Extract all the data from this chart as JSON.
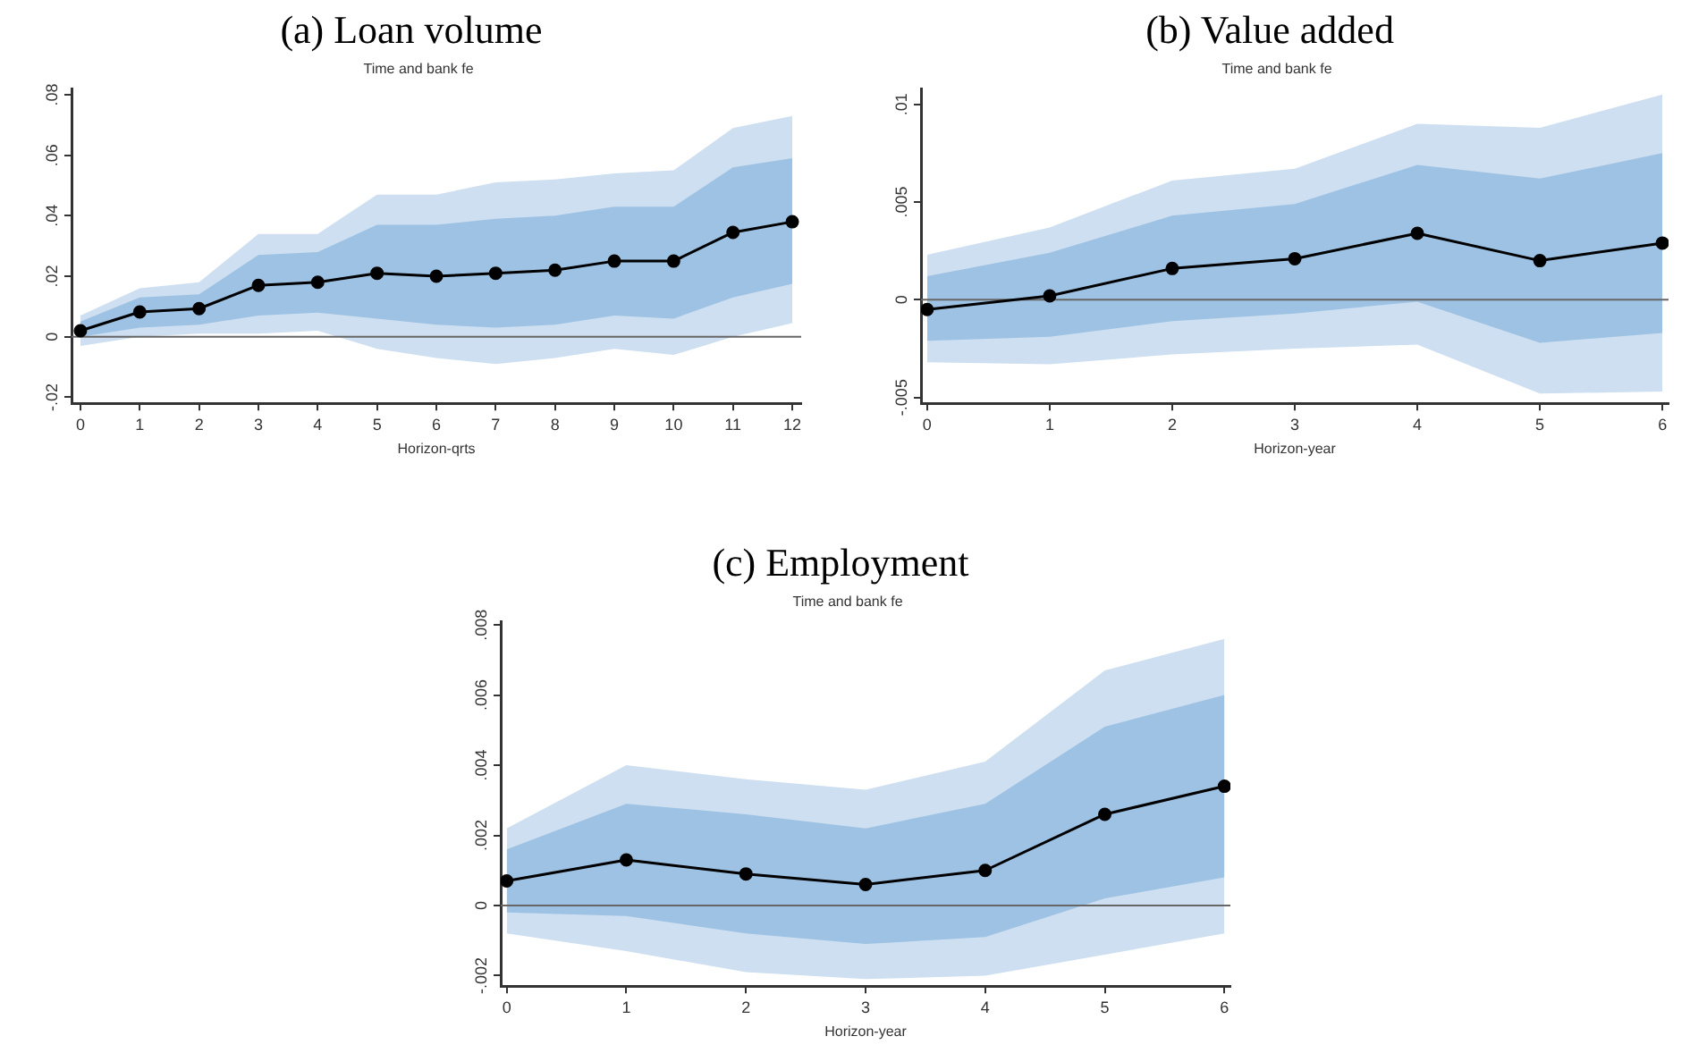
{
  "chart_data": [
    {
      "type": "line",
      "title": "(a) Loan volume",
      "subtitle": "Time and bank fe",
      "xlabel": "Horizon-qrts",
      "x": [
        0,
        1,
        2,
        3,
        4,
        5,
        6,
        7,
        8,
        9,
        10,
        11,
        12
      ],
      "xlim": [
        -0.15,
        12.15
      ],
      "xticks": [
        0,
        1,
        2,
        3,
        4,
        5,
        6,
        7,
        8,
        9,
        10,
        11,
        12
      ],
      "ylim": [
        -0.022,
        0.082
      ],
      "yticks": [
        {
          "value": -0.02,
          "label": "-.02"
        },
        {
          "value": 0,
          "label": "0"
        },
        {
          "value": 0.02,
          "label": ".02"
        },
        {
          "value": 0.04,
          "label": ".04"
        },
        {
          "value": 0.06,
          "label": ".06"
        },
        {
          "value": 0.08,
          "label": ".08"
        }
      ],
      "grid": false,
      "legend": false,
      "marker": "circle",
      "line_style": "solid",
      "ref_lines": [
        {
          "axis": "y",
          "value": 0,
          "color": "#666666"
        }
      ],
      "series": [
        {
          "color": "#cddff0",
          "values": [
            null,
            null,
            null,
            null,
            null,
            null,
            null,
            null,
            null,
            null,
            null,
            null,
            null
          ],
          "lower": [
            -0.003,
            0,
            0.001,
            0.001,
            0.002,
            -0.004,
            -0.007,
            -0.009,
            -0.007,
            -0.004,
            -0.006,
            0,
            0.0045
          ],
          "upper": [
            0.007,
            0.016,
            0.018,
            0.034,
            0.034,
            0.047,
            0.047,
            0.051,
            0.052,
            0.054,
            0.055,
            0.069,
            0.073
          ]
        },
        {
          "color": "#9dc2e3",
          "values": [
            null,
            null,
            null,
            null,
            null,
            null,
            null,
            null,
            null,
            null,
            null,
            null,
            null
          ],
          "lower": [
            0,
            0.003,
            0.004,
            0.007,
            0.008,
            0.006,
            0.004,
            0.003,
            0.004,
            0.007,
            0.006,
            0.013,
            0.0175
          ],
          "upper": [
            0.005,
            0.013,
            0.014,
            0.027,
            0.028,
            0.037,
            0.037,
            0.039,
            0.04,
            0.043,
            0.043,
            0.056,
            0.059
          ]
        },
        {
          "color": "#000000",
          "values": [
            0.002,
            0.0082,
            0.0093,
            0.017,
            0.018,
            0.021,
            0.02,
            0.021,
            0.022,
            0.025,
            0.025,
            0.0345,
            0.038
          ]
        }
      ]
    },
    {
      "type": "line",
      "title": "(b) Value added",
      "subtitle": "Time and bank fe",
      "xlabel": "Horizon-year",
      "x": [
        0,
        1,
        2,
        3,
        4,
        5,
        6
      ],
      "xlim": [
        -0.05,
        6.05
      ],
      "xticks": [
        0,
        1,
        2,
        3,
        4,
        5,
        6
      ],
      "ylim": [
        -0.0053,
        0.0108
      ],
      "yticks": [
        {
          "value": -0.005,
          "label": "-.005"
        },
        {
          "value": 0,
          "label": "0"
        },
        {
          "value": 0.005,
          "label": ".005"
        },
        {
          "value": 0.01,
          "label": ".01"
        }
      ],
      "grid": false,
      "legend": false,
      "marker": "circle",
      "line_style": "solid",
      "ref_lines": [
        {
          "axis": "y",
          "value": 0,
          "color": "#666666"
        }
      ],
      "series": [
        {
          "color": "#cddff0",
          "values": [
            null,
            null,
            null,
            null,
            null,
            null,
            null
          ],
          "lower": [
            -0.0032,
            -0.0033,
            -0.0028,
            -0.0025,
            -0.0023,
            -0.0048,
            -0.0047
          ],
          "upper": [
            0.0023,
            0.0037,
            0.0061,
            0.0067,
            0.009,
            0.0088,
            0.0105
          ]
        },
        {
          "color": "#9dc2e3",
          "values": [
            null,
            null,
            null,
            null,
            null,
            null,
            null
          ],
          "lower": [
            -0.0021,
            -0.0019,
            -0.0011,
            -0.0007,
            -0.0001,
            -0.0022,
            -0.0017
          ],
          "upper": [
            0.0012,
            0.0024,
            0.0043,
            0.0049,
            0.0069,
            0.0062,
            0.0075
          ]
        },
        {
          "color": "#000000",
          "values": [
            -0.0005,
            0.0002,
            0.0016,
            0.0021,
            0.0034,
            0.002,
            0.0029
          ]
        }
      ]
    },
    {
      "type": "line",
      "title": "(c) Employment",
      "subtitle": "Time and bank fe",
      "xlabel": "Horizon-year",
      "x": [
        0,
        1,
        2,
        3,
        4,
        5,
        6
      ],
      "xlim": [
        -0.05,
        6.05
      ],
      "xticks": [
        0,
        1,
        2,
        3,
        4,
        5,
        6
      ],
      "ylim": [
        -0.0023,
        0.0081
      ],
      "yticks": [
        {
          "value": -0.002,
          "label": "-.002"
        },
        {
          "value": 0,
          "label": "0"
        },
        {
          "value": 0.002,
          "label": ".002"
        },
        {
          "value": 0.004,
          "label": ".004"
        },
        {
          "value": 0.006,
          "label": ".006"
        },
        {
          "value": 0.008,
          "label": ".008"
        }
      ],
      "grid": false,
      "legend": false,
      "marker": "circle",
      "line_style": "solid",
      "ref_lines": [
        {
          "axis": "y",
          "value": 0,
          "color": "#666666"
        }
      ],
      "series": [
        {
          "color": "#cddff0",
          "values": [
            null,
            null,
            null,
            null,
            null,
            null,
            null
          ],
          "lower": [
            -0.0008,
            -0.0013,
            -0.0019,
            -0.0021,
            -0.002,
            -0.0014,
            -0.0008
          ],
          "upper": [
            0.0022,
            0.004,
            0.0036,
            0.0033,
            0.0041,
            0.0067,
            0.0076
          ]
        },
        {
          "color": "#9dc2e3",
          "values": [
            null,
            null,
            null,
            null,
            null,
            null,
            null
          ],
          "lower": [
            -0.0002,
            -0.0003,
            -0.0008,
            -0.0011,
            -0.0009,
            0.0002,
            0.0008
          ],
          "upper": [
            0.0016,
            0.0029,
            0.0026,
            0.0022,
            0.0029,
            0.0051,
            0.006
          ]
        },
        {
          "color": "#000000",
          "values": [
            0.0007,
            0.0013,
            0.0009,
            0.0006,
            0.001,
            0.0026,
            0.0034
          ]
        }
      ]
    }
  ]
}
